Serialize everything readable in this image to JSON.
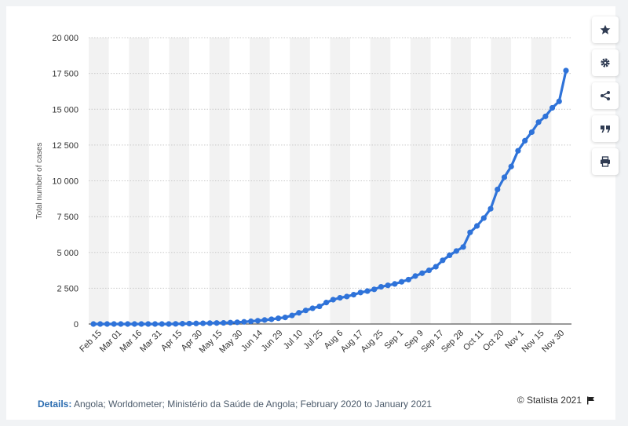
{
  "chart_data": {
    "type": "line",
    "ylabel": "Total number of cases",
    "xlabel": "",
    "ylim": [
      0,
      20000
    ],
    "y_ticks": [
      0,
      2500,
      5000,
      7500,
      10000,
      12500,
      15000,
      17500,
      20000
    ],
    "y_tick_labels": [
      "0",
      "2 500",
      "5 000",
      "7 500",
      "10 000",
      "12 500",
      "15 000",
      "17 500",
      "20 000"
    ],
    "x_tick_labels": [
      "Feb 15",
      "Mar 01",
      "Mar 16",
      "Mar 31",
      "Apr 15",
      "Apr 30",
      "May 15",
      "May 30",
      "Jun 14",
      "Jun 29",
      "Jul 10",
      "Jul 25",
      "Aug 6",
      "Aug 17",
      "Aug 25",
      "Sep 1",
      "Sep 9",
      "Sep 17",
      "Sep 28",
      "Oct 11",
      "Oct 20",
      "Nov 1",
      "Nov 15",
      "Nov 30"
    ],
    "grid": "horizontal",
    "series": [
      {
        "color": "#2f73d9",
        "values": [
          0,
          0,
          0,
          0,
          0,
          0,
          0,
          0,
          0,
          0,
          0,
          0,
          10,
          20,
          30,
          40,
          50,
          60,
          70,
          80,
          100,
          120,
          150,
          190,
          230,
          280,
          330,
          400,
          460,
          600,
          780,
          950,
          1100,
          1230,
          1500,
          1700,
          1830,
          1920,
          2050,
          2200,
          2300,
          2420,
          2600,
          2700,
          2800,
          2950,
          3100,
          3350,
          3550,
          3750,
          4000,
          4450,
          4800,
          5100,
          5380,
          6400,
          6850,
          7400,
          8050,
          9400,
          10250,
          11000,
          12100,
          12800,
          13400,
          14100,
          14500,
          15100,
          15550,
          17700
        ]
      }
    ]
  },
  "toolbar": {
    "buttons": [
      {
        "icon": "star-icon"
      },
      {
        "icon": "gear-icon"
      },
      {
        "icon": "share-icon"
      },
      {
        "icon": "quote-icon"
      },
      {
        "icon": "print-icon"
      }
    ]
  },
  "footer": {
    "details_label": "Details:",
    "details_text": " Angola; Worldometer; Ministério da Saúde de Angola; February 2020 to January 2021",
    "credit": "© Statista 2021"
  },
  "colors": {
    "line": "#2f73d9",
    "band": "#f2f2f2",
    "accent": "#2b6cb0"
  }
}
